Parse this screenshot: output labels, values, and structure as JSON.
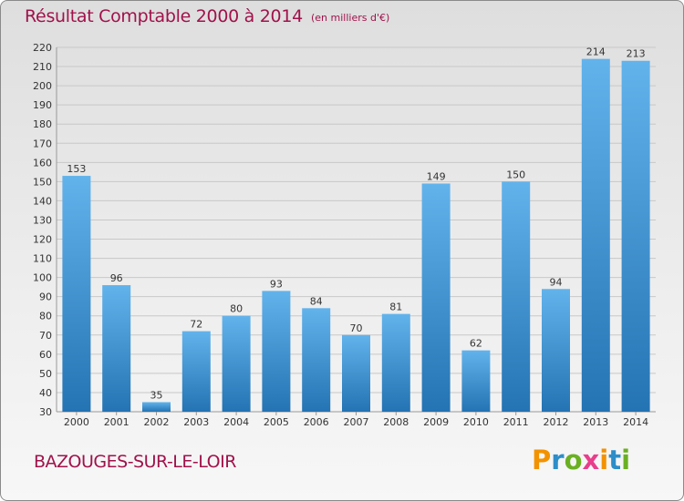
{
  "header": {
    "title": "Résultat Comptable 2000 à 2014",
    "subtitle": "(en milliers d'€)"
  },
  "footer": {
    "commune": "BAZOUGES-SUR-LE-LOIR",
    "brand_letters": [
      "P",
      "r",
      "o",
      "x",
      "i",
      "t",
      "i"
    ],
    "brand_colors": [
      "#f39200",
      "#2d8ec8",
      "#6ab023",
      "#e83e8c",
      "#f39200",
      "#2d8ec8",
      "#6ab023"
    ]
  },
  "colors": {
    "bar_light": "#62b3ec",
    "bar_dark": "#2473b3",
    "grid": "#c8c8c8",
    "title": "#a0124a"
  },
  "chart_data": {
    "type": "bar",
    "categories": [
      "2000",
      "2001",
      "2002",
      "2003",
      "2004",
      "2005",
      "2006",
      "2007",
      "2008",
      "2009",
      "2010",
      "2011",
      "2012",
      "2013",
      "2014"
    ],
    "values": [
      153,
      96,
      35,
      72,
      80,
      93,
      84,
      70,
      81,
      149,
      62,
      150,
      94,
      214,
      213
    ],
    "title": "Résultat Comptable 2000 à 2014",
    "xlabel": "",
    "ylabel": "",
    "ylim": [
      30,
      220
    ],
    "yticks": [
      30,
      40,
      50,
      60,
      70,
      80,
      90,
      100,
      110,
      120,
      130,
      140,
      150,
      160,
      170,
      180,
      190,
      200,
      210,
      220
    ],
    "grid": true,
    "data_labels": true
  }
}
